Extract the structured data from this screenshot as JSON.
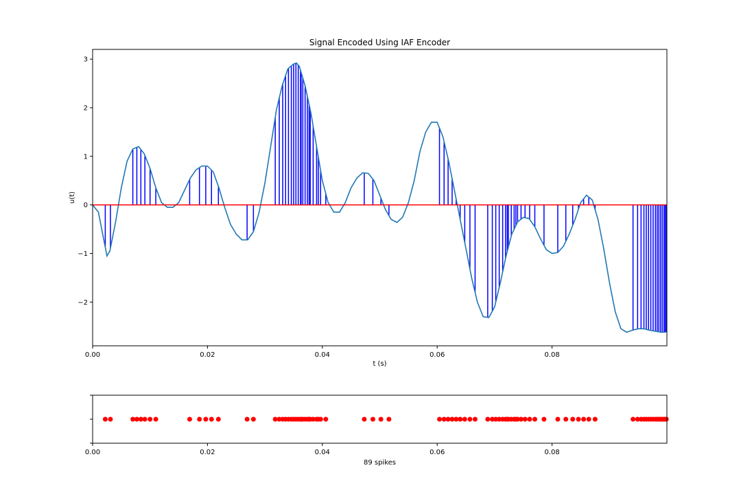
{
  "chart_data": [
    {
      "type": "line",
      "title": "Signal Encoded Using IAF Encoder",
      "xlabel": "t (s)",
      "ylabel": "u(t)",
      "xlim": [
        0,
        0.1
      ],
      "ylim": [
        -2.9,
        3.2
      ],
      "x_ticks": [
        "0.00",
        "0.02",
        "0.04",
        "0.06",
        "0.08"
      ],
      "x_tick_values": [
        0,
        0.02,
        0.04,
        0.06,
        0.08
      ],
      "y_ticks": [
        "−2",
        "−1",
        "0",
        "1",
        "2",
        "3"
      ],
      "y_tick_values": [
        -2,
        -1,
        0,
        1,
        2,
        3
      ],
      "grid": false,
      "series": [
        {
          "color": "#1f77b4",
          "x": [
            0,
            0.001,
            0.002,
            0.0025,
            0.003,
            0.004,
            0.005,
            0.006,
            0.007,
            0.008,
            0.009,
            0.01,
            0.011,
            0.012,
            0.013,
            0.014,
            0.015,
            0.016,
            0.017,
            0.018,
            0.019,
            0.02,
            0.021,
            0.022,
            0.023,
            0.024,
            0.025,
            0.026,
            0.027,
            0.028,
            0.029,
            0.03,
            0.031,
            0.032,
            0.033,
            0.034,
            0.035,
            0.0355,
            0.036,
            0.037,
            0.038,
            0.039,
            0.04,
            0.041,
            0.042,
            0.043,
            0.044,
            0.045,
            0.046,
            0.047,
            0.048,
            0.049,
            0.05,
            0.051,
            0.052,
            0.053,
            0.054,
            0.055,
            0.056,
            0.057,
            0.058,
            0.059,
            0.06,
            0.061,
            0.062,
            0.063,
            0.064,
            0.065,
            0.066,
            0.067,
            0.068,
            0.069,
            0.07,
            0.071,
            0.072,
            0.073,
            0.074,
            0.075,
            0.076,
            0.077,
            0.078,
            0.079,
            0.08,
            0.081,
            0.082,
            0.083,
            0.084,
            0.085,
            0.086,
            0.087,
            0.088,
            0.089,
            0.09,
            0.091,
            0.092,
            0.093,
            0.094,
            0.095,
            0.096,
            0.097,
            0.098,
            0.099,
            0.0998
          ],
          "y": [
            0,
            -0.15,
            -0.75,
            -1.05,
            -0.95,
            -0.35,
            0.35,
            0.9,
            1.15,
            1.2,
            1.05,
            0.75,
            0.35,
            0.05,
            -0.05,
            -0.05,
            0.05,
            0.3,
            0.55,
            0.72,
            0.8,
            0.8,
            0.68,
            0.35,
            -0.05,
            -0.4,
            -0.6,
            -0.72,
            -0.72,
            -0.55,
            -0.15,
            0.45,
            1.2,
            1.95,
            2.45,
            2.8,
            2.9,
            2.92,
            2.85,
            2.45,
            1.9,
            1.2,
            0.5,
            0.05,
            -0.15,
            -0.15,
            0.05,
            0.35,
            0.55,
            0.66,
            0.65,
            0.5,
            0.2,
            -0.1,
            -0.3,
            -0.36,
            -0.25,
            0.05,
            0.5,
            1.1,
            1.5,
            1.7,
            1.7,
            1.4,
            0.9,
            0.3,
            -0.3,
            -0.9,
            -1.5,
            -2.0,
            -2.3,
            -2.32,
            -2.1,
            -1.6,
            -1.05,
            -0.6,
            -0.35,
            -0.26,
            -0.28,
            -0.45,
            -0.7,
            -0.92,
            -1.0,
            -0.98,
            -0.85,
            -0.6,
            -0.3,
            0.05,
            0.2,
            0.1,
            -0.3,
            -0.9,
            -1.6,
            -2.2,
            -2.55,
            -2.62,
            -2.58,
            -2.55,
            -2.55,
            -2.58,
            -2.6,
            -2.62,
            -2.62
          ]
        }
      ],
      "baseline": {
        "y": 0,
        "color": "#ff0000"
      },
      "stems": {
        "color": "#0000ff"
      }
    },
    {
      "type": "scatter",
      "xlabel": "89 spikes",
      "xlim": [
        0,
        0.1
      ],
      "x_ticks": [
        "0.00",
        "0.02",
        "0.04",
        "0.06",
        "0.08"
      ],
      "x_tick_values": [
        0,
        0.02,
        0.04,
        0.06,
        0.08
      ],
      "color": "#ff0000",
      "spike_times": [
        0.0022,
        0.0031,
        0.007,
        0.0077,
        0.0084,
        0.0091,
        0.01,
        0.011,
        0.0169,
        0.0186,
        0.0197,
        0.0207,
        0.0219,
        0.0269,
        0.028,
        0.0318,
        0.0325,
        0.0331,
        0.0336,
        0.0341,
        0.0346,
        0.035,
        0.0354,
        0.0358,
        0.0362,
        0.0366,
        0.037,
        0.0374,
        0.0379,
        0.0384,
        0.039,
        0.0397,
        0.0406,
        0.0473,
        0.0488,
        0.0502,
        0.0516,
        0.0604,
        0.0612,
        0.0619,
        0.0626,
        0.0633,
        0.064,
        0.0648,
        0.0657,
        0.0666,
        0.0688,
        0.0696,
        0.0702,
        0.0708,
        0.0714,
        0.0719,
        0.0724,
        0.0729,
        0.0734,
        0.074,
        0.0746,
        0.0753,
        0.0761,
        0.077,
        0.0786,
        0.081,
        0.0824,
        0.0836,
        0.0846,
        0.0855,
        0.0864,
        0.0875,
        0.0941,
        0.0949,
        0.0955,
        0.096,
        0.0964,
        0.0968,
        0.0972,
        0.0976,
        0.098,
        0.0983,
        0.0986,
        0.0989,
        0.0992,
        0.0995,
        0.0997,
        0.0999,
        0.0363,
        0.0377,
        0.0393,
        0.0722,
        0.0737
      ]
    }
  ]
}
